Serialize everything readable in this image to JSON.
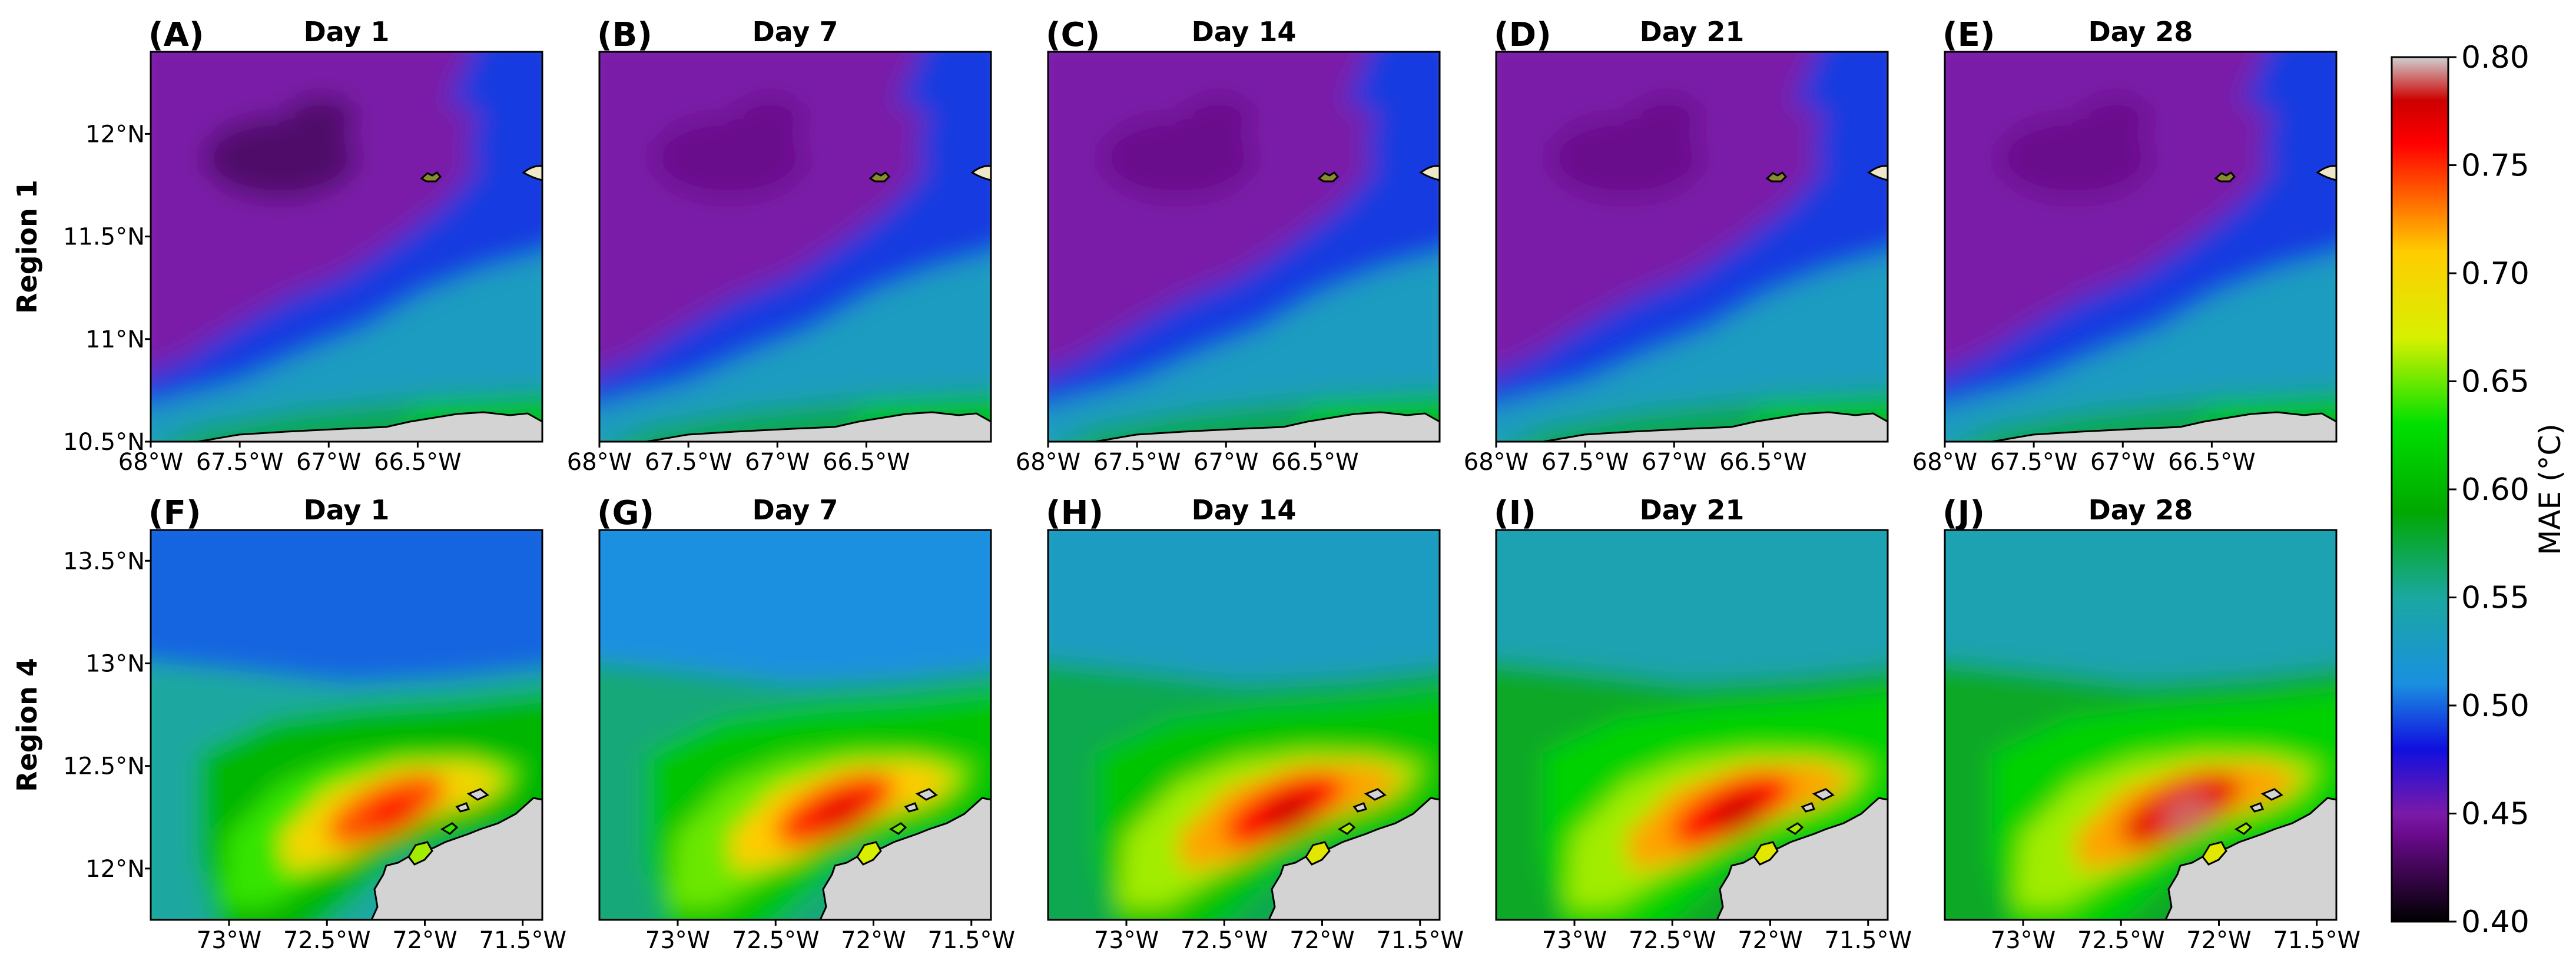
{
  "chart_data": {
    "type": "heatmap",
    "variable": "MAE",
    "unit": "°C",
    "colorbar": {
      "label": "MAE (°C)",
      "range": [
        0.4,
        0.8
      ],
      "ticks": [
        "0.40",
        "0.45",
        "0.50",
        "0.55",
        "0.60",
        "0.65",
        "0.70",
        "0.75",
        "0.80"
      ],
      "stops": [
        "#000000",
        "#6a0a8c",
        "#7a1aa8",
        "#1010e0",
        "#1a90e0",
        "#1aa8a0",
        "#00a800",
        "#00e000",
        "#d8f000",
        "#ffcc00",
        "#ff7a00",
        "#ff0000",
        "#cc0000",
        "#d0d0d0"
      ],
      "stop_values": [
        0.4,
        0.44,
        0.45,
        0.48,
        0.51,
        0.55,
        0.59,
        0.63,
        0.67,
        0.71,
        0.73,
        0.76,
        0.78,
        0.8
      ]
    },
    "rows": [
      {
        "label": "Region 1",
        "lon_range": [
          -68.0,
          -65.8
        ],
        "lat_range": [
          10.5,
          12.4
        ],
        "x_ticks": [
          "68°W",
          "67.5°W",
          "67°W",
          "66.5°W"
        ],
        "x_tick_values": [
          -68.0,
          -67.5,
          -67.0,
          -66.5
        ],
        "y_ticks": [
          "12°N",
          "11.5°N",
          "11°N",
          "10.5°N"
        ],
        "y_tick_values": [
          12.0,
          11.5,
          11.0,
          10.5
        ],
        "panels": [
          {
            "letter": "(A)",
            "title": "Day 1",
            "values": [
              0.45,
              0.43,
              0.45,
              0.49,
              0.53,
              0.57,
              0.61
            ]
          },
          {
            "letter": "(B)",
            "title": "Day 7",
            "values": [
              0.45,
              0.44,
              0.45,
              0.49,
              0.53,
              0.57,
              0.61
            ]
          },
          {
            "letter": "(C)",
            "title": "Day 14",
            "values": [
              0.45,
              0.44,
              0.45,
              0.49,
              0.53,
              0.57,
              0.61
            ]
          },
          {
            "letter": "(D)",
            "title": "Day 21",
            "values": [
              0.45,
              0.44,
              0.45,
              0.49,
              0.53,
              0.57,
              0.61
            ]
          },
          {
            "letter": "(E)",
            "title": "Day 28",
            "values": [
              0.45,
              0.44,
              0.45,
              0.49,
              0.53,
              0.57,
              0.61
            ]
          }
        ]
      },
      {
        "label": "Region 4",
        "lon_range": [
          -73.4,
          -71.4
        ],
        "lat_range": [
          11.75,
          13.65
        ],
        "x_ticks": [
          "73°W",
          "72.5°W",
          "72°W",
          "71.5°W"
        ],
        "x_tick_values": [
          -73.0,
          -72.5,
          -72.0,
          -71.5
        ],
        "y_ticks": [
          "13.5°N",
          "13°N",
          "12.5°N",
          "12°N"
        ],
        "y_tick_values": [
          13.5,
          13.0,
          12.5,
          12.0
        ],
        "panels": [
          {
            "letter": "(F)",
            "title": "Day 1",
            "values": [
              0.5,
              0.55,
              0.6,
              0.64,
              0.7,
              0.74
            ]
          },
          {
            "letter": "(G)",
            "title": "Day 7",
            "values": [
              0.51,
              0.56,
              0.61,
              0.65,
              0.71,
              0.75
            ]
          },
          {
            "letter": "(H)",
            "title": "Day 14",
            "values": [
              0.53,
              0.57,
              0.61,
              0.66,
              0.72,
              0.76
            ]
          },
          {
            "letter": "(I)",
            "title": "Day 21",
            "values": [
              0.54,
              0.58,
              0.62,
              0.66,
              0.72,
              0.76
            ]
          },
          {
            "letter": "(J)",
            "title": "Day 28",
            "values": [
              0.54,
              0.58,
              0.62,
              0.66,
              0.72,
              0.77
            ]
          }
        ]
      }
    ]
  }
}
